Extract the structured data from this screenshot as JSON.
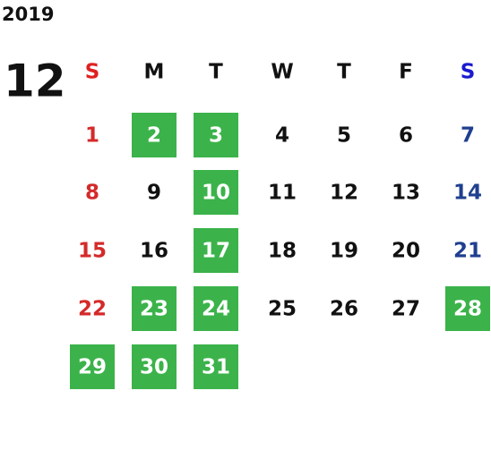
{
  "year": "2019",
  "month": "12",
  "weekdays": [
    "S",
    "M",
    "T",
    "W",
    "T",
    "F",
    "S"
  ],
  "header_colors": [
    "#e02020",
    "#111111",
    "#111111",
    "#111111",
    "#111111",
    "#111111",
    "#1a1ad0"
  ],
  "day_colors": [
    "#d42a2a",
    "#111111",
    "#111111",
    "#111111",
    "#111111",
    "#111111",
    "#1f3f8f"
  ],
  "highlight_color": "#3bb34a",
  "weeks": [
    [
      {
        "day": 1,
        "highlight": false
      },
      {
        "day": 2,
        "highlight": true
      },
      {
        "day": 3,
        "highlight": true
      },
      {
        "day": 4,
        "highlight": false
      },
      {
        "day": 5,
        "highlight": false
      },
      {
        "day": 6,
        "highlight": false
      },
      {
        "day": 7,
        "highlight": false
      }
    ],
    [
      {
        "day": 8,
        "highlight": false
      },
      {
        "day": 9,
        "highlight": false
      },
      {
        "day": 10,
        "highlight": true
      },
      {
        "day": 11,
        "highlight": false
      },
      {
        "day": 12,
        "highlight": false
      },
      {
        "day": 13,
        "highlight": false
      },
      {
        "day": 14,
        "highlight": false
      }
    ],
    [
      {
        "day": 15,
        "highlight": false
      },
      {
        "day": 16,
        "highlight": false
      },
      {
        "day": 17,
        "highlight": true
      },
      {
        "day": 18,
        "highlight": false
      },
      {
        "day": 19,
        "highlight": false
      },
      {
        "day": 20,
        "highlight": false
      },
      {
        "day": 21,
        "highlight": false
      }
    ],
    [
      {
        "day": 22,
        "highlight": false
      },
      {
        "day": 23,
        "highlight": true
      },
      {
        "day": 24,
        "highlight": true
      },
      {
        "day": 25,
        "highlight": false
      },
      {
        "day": 26,
        "highlight": false
      },
      {
        "day": 27,
        "highlight": false
      },
      {
        "day": 28,
        "highlight": true
      }
    ],
    [
      {
        "day": 29,
        "highlight": true
      },
      {
        "day": 30,
        "highlight": true
      },
      {
        "day": 31,
        "highlight": true
      }
    ]
  ]
}
